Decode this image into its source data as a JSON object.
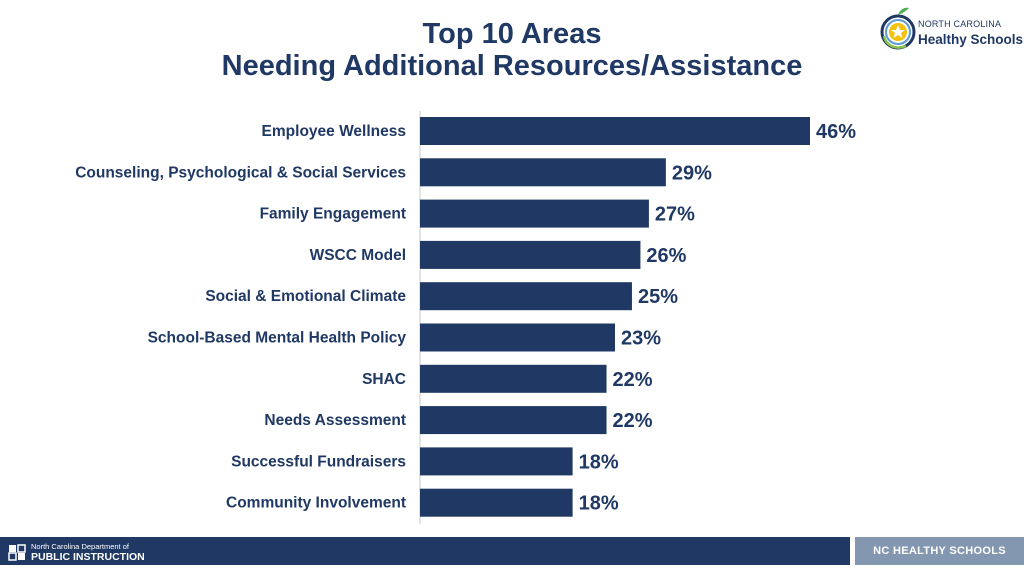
{
  "title": {
    "line1": "Top 10 Areas",
    "line2": "Needing Additional Resources/Assistance"
  },
  "logo": {
    "line1": "NORTH CAROLINA",
    "line2": "Healthy Schools",
    "icon": "apple-star-icon"
  },
  "footer": {
    "dept_line1": "North Carolina Department of",
    "dept_line2": "PUBLIC INSTRUCTION",
    "right_label": "NC HEALTHY SCHOOLS",
    "bar_color": "#1f3864",
    "right_color": "#8497b0"
  },
  "chart_data": {
    "type": "bar",
    "orientation": "horizontal",
    "categories": [
      "Employee Wellness",
      "Counseling, Psychological & Social Services",
      "Family Engagement",
      "WSCC Model",
      "Social & Emotional Climate",
      "School-Based Mental Health Policy",
      "SHAC",
      "Needs Assessment",
      "Successful Fundraisers",
      "Community Involvement"
    ],
    "values": [
      46,
      29,
      27,
      26,
      25,
      23,
      22,
      22,
      18,
      18
    ],
    "data_labels": [
      "46%",
      "29%",
      "27%",
      "26%",
      "25%",
      "23%",
      "22%",
      "22%",
      "18%",
      "18%"
    ],
    "bar_color": "#1f3864",
    "xlim": [
      0,
      46
    ],
    "grid": false,
    "legend": "none"
  }
}
